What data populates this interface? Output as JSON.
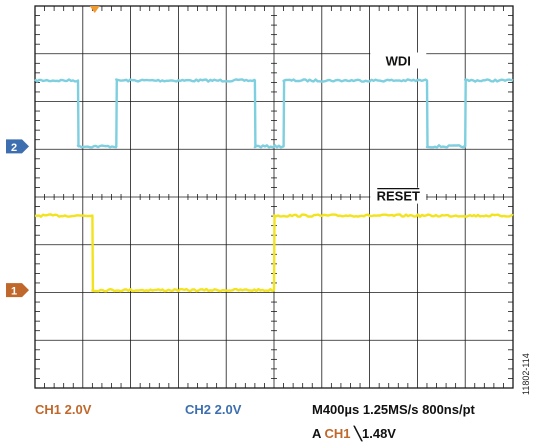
{
  "chart_data": {
    "type": "line",
    "grid": true,
    "divisions": {
      "horizontal": 10,
      "vertical": 8
    },
    "series": [
      {
        "name": "WDI",
        "channel": "2",
        "color": "#7ecfdf",
        "low_level_div": 5.06,
        "high_level_div": 6.44,
        "transitions_div": [
          {
            "t": 0.9,
            "to": "low"
          },
          {
            "t": 1.7,
            "to": "high"
          },
          {
            "t": 4.6,
            "to": "low"
          },
          {
            "t": 5.2,
            "to": "high"
          },
          {
            "t": 8.2,
            "to": "low"
          },
          {
            "t": 9.0,
            "to": "high"
          }
        ],
        "initial": "high"
      },
      {
        "name": "RESET",
        "overline": true,
        "channel": "1",
        "color": "#f2e31c",
        "low_level_div": 2.05,
        "high_level_div": 3.61,
        "transitions_div": [
          {
            "t": 1.2,
            "to": "low"
          },
          {
            "t": 5.0,
            "to": "high"
          }
        ],
        "initial": "high"
      }
    ],
    "markers": [
      {
        "channel": "2",
        "level_div": 5.06,
        "color": "#3d6fb0"
      },
      {
        "channel": "1",
        "level_div": 2.05,
        "color": "#c0682b"
      }
    ],
    "trigger_position_div": 1.25
  },
  "status": {
    "ch1": "CH1  2.0V",
    "ch2": "CH2  2.0V",
    "timebase": "M400µs 1.25MS/s  800ns/pt",
    "trigger_prefix": "A ",
    "trigger_source": "CH1",
    "trigger_slope": "╲",
    "trigger_level": "1.48V"
  },
  "figure_id": "11802-114",
  "colors": {
    "grid": "#1a1a1a",
    "ch1_label": "#c0682b",
    "ch2_label": "#3d6fb0",
    "trigger_marker": "#f29a2e"
  }
}
